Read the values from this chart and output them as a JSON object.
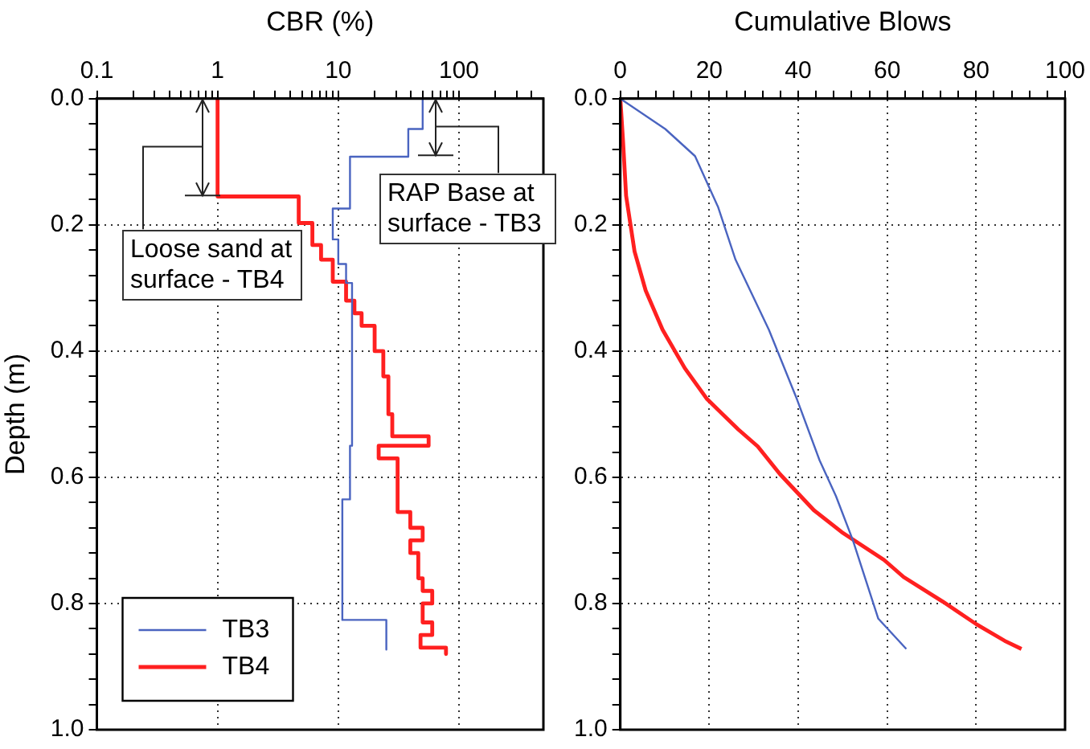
{
  "chart_data": [
    {
      "type": "line",
      "xlabel": "CBR (%)",
      "ylabel": "Depth (m)",
      "log": "x",
      "xlim": [
        0.1,
        500
      ],
      "ylim": [
        1.0,
        0.0
      ],
      "xticks": [
        0.1,
        {
          "value": 0.2,
          "label": null
        },
        {
          "value": 0.3,
          "label": null
        },
        {
          "value": 0.4,
          "label": null
        },
        {
          "value": 0.5,
          "label": null
        },
        {
          "value": 0.6,
          "label": null
        },
        {
          "value": 0.7,
          "label": null
        },
        {
          "value": 0.8,
          "label": null
        },
        {
          "value": 0.9,
          "label": null
        },
        1,
        {
          "value": 2,
          "label": null
        },
        {
          "value": 3,
          "label": null
        },
        {
          "value": 4,
          "label": null
        },
        {
          "value": 5,
          "label": null
        },
        {
          "value": 6,
          "label": null
        },
        {
          "value": 7,
          "label": null
        },
        {
          "value": 8,
          "label": null
        },
        {
          "value": 9,
          "label": null
        },
        10,
        {
          "value": 20,
          "label": null
        },
        {
          "value": 30,
          "label": null
        },
        {
          "value": 40,
          "label": null
        },
        {
          "value": 50,
          "label": null
        },
        {
          "value": 60,
          "label": null
        },
        {
          "value": 70,
          "label": null
        },
        {
          "value": 80,
          "label": null
        },
        {
          "value": 90,
          "label": null
        },
        100,
        {
          "value": 200,
          "label": null
        },
        {
          "value": 300,
          "label": null
        },
        {
          "value": 400,
          "label": null
        }
      ],
      "yticks": [
        {
          "value": 0,
          "label": "0.0"
        },
        {
          "value": 0.04,
          "label": null
        },
        {
          "value": 0.08,
          "label": null
        },
        {
          "value": 0.12,
          "label": null
        },
        {
          "value": 0.16,
          "label": null
        },
        {
          "value": 0.2,
          "label": "0.2"
        },
        {
          "value": 0.24,
          "label": null
        },
        {
          "value": 0.28,
          "label": null
        },
        {
          "value": 0.32,
          "label": null
        },
        {
          "value": 0.36,
          "label": null
        },
        {
          "value": 0.4,
          "label": "0.4"
        },
        {
          "value": 0.44,
          "label": null
        },
        {
          "value": 0.48,
          "label": null
        },
        {
          "value": 0.52,
          "label": null
        },
        {
          "value": 0.56,
          "label": null
        },
        {
          "value": 0.6,
          "label": "0.6"
        },
        {
          "value": 0.64,
          "label": null
        },
        {
          "value": 0.68,
          "label": null
        },
        {
          "value": 0.72,
          "label": null
        },
        {
          "value": 0.76,
          "label": null
        },
        {
          "value": 0.8,
          "label": "0.8"
        },
        {
          "value": 0.84,
          "label": null
        },
        {
          "value": 0.88,
          "label": null
        },
        {
          "value": 0.92,
          "label": null
        },
        {
          "value": 0.96,
          "label": null
        },
        {
          "value": 1.0,
          "label": "1.0"
        }
      ],
      "grid": true,
      "legend": "bottom left",
      "marker": "none",
      "annotations": [
        "Loose sand at surface - TB4",
        "RAP Base at surface - TB3"
      ],
      "series": [
        {
          "name": "TB3",
          "color": "#4a64c0",
          "x": [
            50,
            50,
            38,
            38,
            12.5,
            12.5,
            9,
            9,
            10,
            10,
            11.6,
            11.6,
            13,
            13,
            12.5,
            12.5,
            10.8,
            10.8,
            25,
            25
          ],
          "values": [
            0,
            0.048,
            0.048,
            0.092,
            0.092,
            0.174,
            0.174,
            0.223,
            0.223,
            0.262,
            0.262,
            0.292,
            0.292,
            0.55,
            0.55,
            0.635,
            0.635,
            0.826,
            0.826,
            0.873
          ]
        },
        {
          "name": "TB4",
          "color": "#ff2020",
          "x": [
            1,
            1,
            4.7,
            4.7,
            6.1,
            6.1,
            7.2,
            7.2,
            9,
            9,
            11.6,
            11.6,
            13.6,
            13.6,
            15.6,
            15.6,
            20,
            20,
            23.6,
            23.6,
            26,
            26,
            28,
            28,
            56,
            56,
            21.6,
            21.6,
            31,
            31,
            39.5,
            39.5,
            50,
            50,
            39.5,
            39.5,
            46,
            46,
            50,
            50,
            60,
            60,
            50,
            50,
            60,
            60,
            48,
            48,
            78,
            78
          ],
          "values": [
            0,
            0.155,
            0.155,
            0.197,
            0.197,
            0.232,
            0.232,
            0.255,
            0.255,
            0.29,
            0.29,
            0.32,
            0.32,
            0.34,
            0.34,
            0.36,
            0.36,
            0.4,
            0.4,
            0.44,
            0.44,
            0.5,
            0.5,
            0.535,
            0.535,
            0.55,
            0.55,
            0.57,
            0.57,
            0.655,
            0.655,
            0.68,
            0.68,
            0.7,
            0.7,
            0.72,
            0.72,
            0.76,
            0.76,
            0.78,
            0.78,
            0.8,
            0.8,
            0.83,
            0.83,
            0.85,
            0.85,
            0.87,
            0.87,
            0.88
          ]
        }
      ]
    },
    {
      "type": "line",
      "xlabel": "Cumulative Blows",
      "xlim": [
        0,
        100
      ],
      "ylim": [
        1.0,
        0.0
      ],
      "xticks": [
        0,
        {
          "value": 4,
          "label": null
        },
        {
          "value": 8,
          "label": null
        },
        {
          "value": 12,
          "label": null
        },
        {
          "value": 16,
          "label": null
        },
        20,
        {
          "value": 24,
          "label": null
        },
        {
          "value": 28,
          "label": null
        },
        {
          "value": 32,
          "label": null
        },
        {
          "value": 36,
          "label": null
        },
        40,
        {
          "value": 44,
          "label": null
        },
        {
          "value": 48,
          "label": null
        },
        {
          "value": 52,
          "label": null
        },
        {
          "value": 56,
          "label": null
        },
        60,
        {
          "value": 64,
          "label": null
        },
        {
          "value": 68,
          "label": null
        },
        {
          "value": 72,
          "label": null
        },
        {
          "value": 76,
          "label": null
        },
        80,
        {
          "value": 84,
          "label": null
        },
        {
          "value": 88,
          "label": null
        },
        {
          "value": 92,
          "label": null
        },
        {
          "value": 96,
          "label": null
        },
        100
      ],
      "yticks": [
        {
          "value": 0,
          "label": "0.0"
        },
        {
          "value": 0.04,
          "label": null
        },
        {
          "value": 0.08,
          "label": null
        },
        {
          "value": 0.12,
          "label": null
        },
        {
          "value": 0.16,
          "label": null
        },
        {
          "value": 0.2,
          "label": "0.2"
        },
        {
          "value": 0.24,
          "label": null
        },
        {
          "value": 0.28,
          "label": null
        },
        {
          "value": 0.32,
          "label": null
        },
        {
          "value": 0.36,
          "label": null
        },
        {
          "value": 0.4,
          "label": "0.4"
        },
        {
          "value": 0.44,
          "label": null
        },
        {
          "value": 0.48,
          "label": null
        },
        {
          "value": 0.52,
          "label": null
        },
        {
          "value": 0.56,
          "label": null
        },
        {
          "value": 0.6,
          "label": "0.6"
        },
        {
          "value": 0.64,
          "label": null
        },
        {
          "value": 0.68,
          "label": null
        },
        {
          "value": 0.72,
          "label": null
        },
        {
          "value": 0.76,
          "label": null
        },
        {
          "value": 0.8,
          "label": "0.8"
        },
        {
          "value": 0.84,
          "label": null
        },
        {
          "value": 0.88,
          "label": null
        },
        {
          "value": 0.92,
          "label": null
        },
        {
          "value": 0.96,
          "label": null
        },
        {
          "value": 1.0,
          "label": "1.0"
        }
      ],
      "grid": true,
      "marker": "none",
      "series": [
        {
          "color": "#4a64c0",
          "x": [
            0,
            10.1,
            16.8,
            22,
            25.9,
            33.4,
            39.7,
            44.8,
            48.5,
            52.3,
            58,
            64.3
          ],
          "values": [
            0,
            0.048,
            0.091,
            0.172,
            0.255,
            0.366,
            0.476,
            0.573,
            0.63,
            0.7,
            0.824,
            0.872
          ]
        },
        {
          "color": "#ff2020",
          "x": [
            0,
            0.6,
            1.3,
            3.2,
            5.7,
            9.5,
            14.5,
            19.5,
            26.5,
            30.9,
            35.9,
            43.5,
            49.8,
            59.3,
            63.7,
            72.5,
            80.1,
            86.4,
            90.2
          ],
          "values": [
            0,
            0.066,
            0.154,
            0.242,
            0.304,
            0.366,
            0.427,
            0.476,
            0.524,
            0.551,
            0.595,
            0.652,
            0.687,
            0.731,
            0.758,
            0.797,
            0.833,
            0.859,
            0.872
          ]
        }
      ]
    }
  ]
}
